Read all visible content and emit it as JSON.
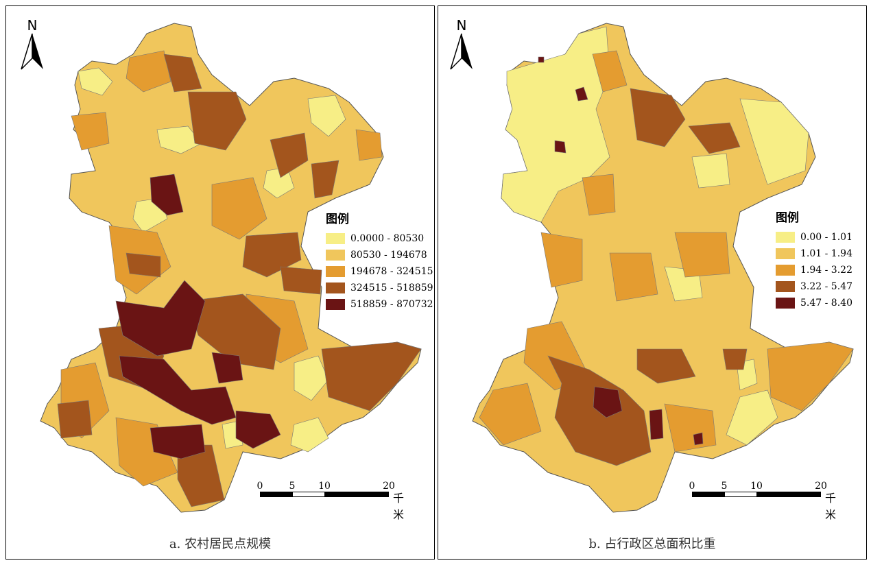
{
  "panels": [
    {
      "caption": "a. 农村居民点规模",
      "legend": {
        "title": "图例",
        "items": [
          {
            "label": "0.0000 - 80530",
            "color": "#f7ee86"
          },
          {
            "label": "80530 - 194678",
            "color": "#f0c65c"
          },
          {
            "label": "194678 - 324515",
            "color": "#e49c30"
          },
          {
            "label": "324515 - 518859",
            "color": "#a3551d"
          },
          {
            "label": "518859 - 870732",
            "color": "#6a1414"
          }
        ]
      },
      "north": "N",
      "scale": {
        "ticks": [
          "0",
          "5",
          "10",
          "20"
        ],
        "unit": "千米"
      }
    },
    {
      "caption": "b. 占行政区总面积比重",
      "legend": {
        "title": "图例",
        "items": [
          {
            "label": "0.00 - 1.01",
            "color": "#f7ee86"
          },
          {
            "label": "1.01 - 1.94",
            "color": "#f0c65c"
          },
          {
            "label": "1.94 - 3.22",
            "color": "#e49c30"
          },
          {
            "label": "3.22 - 5.47",
            "color": "#a3551d"
          },
          {
            "label": "5.47 - 8.40",
            "color": "#6a1414"
          }
        ]
      },
      "north": "N",
      "scale": {
        "ticks": [
          "0",
          "5",
          "10",
          "20"
        ],
        "unit": "千米"
      }
    }
  ]
}
